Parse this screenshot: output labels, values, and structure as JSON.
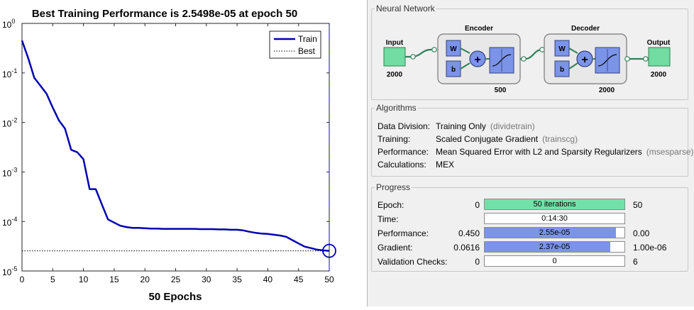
{
  "chart_data": {
    "type": "line",
    "title": "Best Training Performance is 2.5498e-05 at epoch 50",
    "xlabel": "50 Epochs",
    "ylabel": "",
    "xlim": [
      0,
      50
    ],
    "ylim_log10": [
      -5,
      0
    ],
    "y_scale": "log",
    "x_ticks": [
      0,
      5,
      10,
      15,
      20,
      25,
      30,
      35,
      40,
      45,
      50
    ],
    "y_ticks": [
      {
        "label": "10",
        "exp": "0",
        "value": 1
      },
      {
        "label": "10",
        "exp": "-1",
        "value": 0.1
      },
      {
        "label": "10",
        "exp": "-2",
        "value": 0.01
      },
      {
        "label": "10",
        "exp": "-3",
        "value": 0.001
      },
      {
        "label": "10",
        "exp": "-4",
        "value": 0.0001
      },
      {
        "label": "10",
        "exp": "-5",
        "value": 1e-05
      }
    ],
    "series": [
      {
        "name": "Train",
        "color": "#0000b3",
        "x": [
          0,
          1,
          2,
          3,
          4,
          5,
          6,
          7,
          8,
          9,
          10,
          11,
          12,
          13,
          14,
          15,
          16,
          17,
          18,
          19,
          20,
          21,
          22,
          23,
          24,
          25,
          26,
          27,
          28,
          29,
          30,
          31,
          32,
          33,
          34,
          35,
          36,
          37,
          38,
          39,
          40,
          41,
          42,
          43,
          44,
          45,
          46,
          47,
          48,
          49,
          50
        ],
        "y": [
          0.45,
          0.2,
          0.08,
          0.055,
          0.038,
          0.02,
          0.011,
          0.0075,
          0.0028,
          0.0025,
          0.0018,
          0.00045,
          0.00045,
          0.00022,
          0.00011,
          9.5e-05,
          8.2e-05,
          7.7e-05,
          7.4e-05,
          7.4e-05,
          7.3e-05,
          7.2e-05,
          7.2e-05,
          7.1e-05,
          7.1e-05,
          7.1e-05,
          7.1e-05,
          7.1e-05,
          7.1e-05,
          7e-05,
          7e-05,
          7e-05,
          6.9e-05,
          6.9e-05,
          6.8e-05,
          6.8e-05,
          6.6e-05,
          6.2e-05,
          5.9e-05,
          5.7e-05,
          5.6e-05,
          5.4e-05,
          5.2e-05,
          4.9e-05,
          4.2e-05,
          3.6e-05,
          3.1e-05,
          2.9e-05,
          2.7e-05,
          2.6e-05,
          2.55e-05
        ]
      }
    ],
    "best": {
      "name": "Best",
      "value": 2.5498e-05,
      "epoch": 50
    },
    "legend": {
      "position": "top-right",
      "entries": [
        "Train",
        "Best"
      ]
    },
    "grid": false
  },
  "network": {
    "title": "Neural Network",
    "input_label": "Input",
    "input_size": "2000",
    "encoder_label": "Encoder",
    "encoder_size": "500",
    "decoder_label": "Decoder",
    "decoder_size": "2000",
    "output_label": "Output",
    "output_size": "2000",
    "w_label": "W",
    "b_label": "b",
    "plus_symbol": "+"
  },
  "algorithms": {
    "title": "Algorithms",
    "rows": [
      {
        "key": "Data Division:",
        "value": "Training Only",
        "sub": "(dividetrain)"
      },
      {
        "key": "Training:",
        "value": "Scaled Conjugate Gradient",
        "sub": "(trainscg)"
      },
      {
        "key": "Performance:",
        "value": "Mean Squared Error with L2 and Sparsity Regularizers",
        "sub": "(msesparse)"
      },
      {
        "key": "Calculations:",
        "value": "MEX",
        "sub": ""
      }
    ]
  },
  "progress": {
    "title": "Progress",
    "rows": [
      {
        "label": "Epoch:",
        "min": "0",
        "text": "50 iterations",
        "max": "50",
        "fill": 1.0,
        "color": "#72e0a8"
      },
      {
        "label": "Time:",
        "min": "",
        "text": "0:14:30",
        "max": "",
        "fill": 0.0,
        "color": "#ffffff"
      },
      {
        "label": "Performance:",
        "min": "0.450",
        "text": "2.55e-05",
        "max": "0.00",
        "fill": 0.94,
        "color": "#7b94e8"
      },
      {
        "label": "Gradient:",
        "min": "0.0616",
        "text": "2.37e-05",
        "max": "1.00e-06",
        "fill": 0.9,
        "color": "#7b94e8"
      },
      {
        "label": "Validation Checks:",
        "min": "0",
        "text": "0",
        "max": "6",
        "fill": 0.0,
        "color": "#ffffff"
      }
    ]
  }
}
